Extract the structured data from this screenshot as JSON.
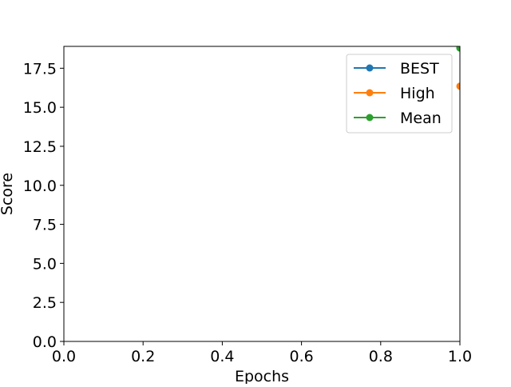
{
  "chart_data": {
    "type": "line",
    "title": "",
    "xlabel": "Epochs",
    "ylabel": "Score",
    "xlim": [
      0.0,
      1.0
    ],
    "ylim": [
      0.0,
      18.9
    ],
    "xticks": [
      "0.0",
      "0.2",
      "0.4",
      "0.6",
      "0.8",
      "1.0"
    ],
    "yticks": [
      "0.0",
      "2.5",
      "5.0",
      "7.5",
      "10.0",
      "12.5",
      "15.0",
      "17.5"
    ],
    "grid": false,
    "legend_position": "top-right",
    "series": [
      {
        "name": "BEST",
        "color": "#1f77b4",
        "x": [
          1.0
        ],
        "y": [
          18.8
        ]
      },
      {
        "name": "High",
        "color": "#ff7f0e",
        "x": [
          1.0
        ],
        "y": [
          16.35
        ]
      },
      {
        "name": "Mean",
        "color": "#2ca02c",
        "x": [
          1.0
        ],
        "y": [
          18.8
        ]
      }
    ]
  }
}
